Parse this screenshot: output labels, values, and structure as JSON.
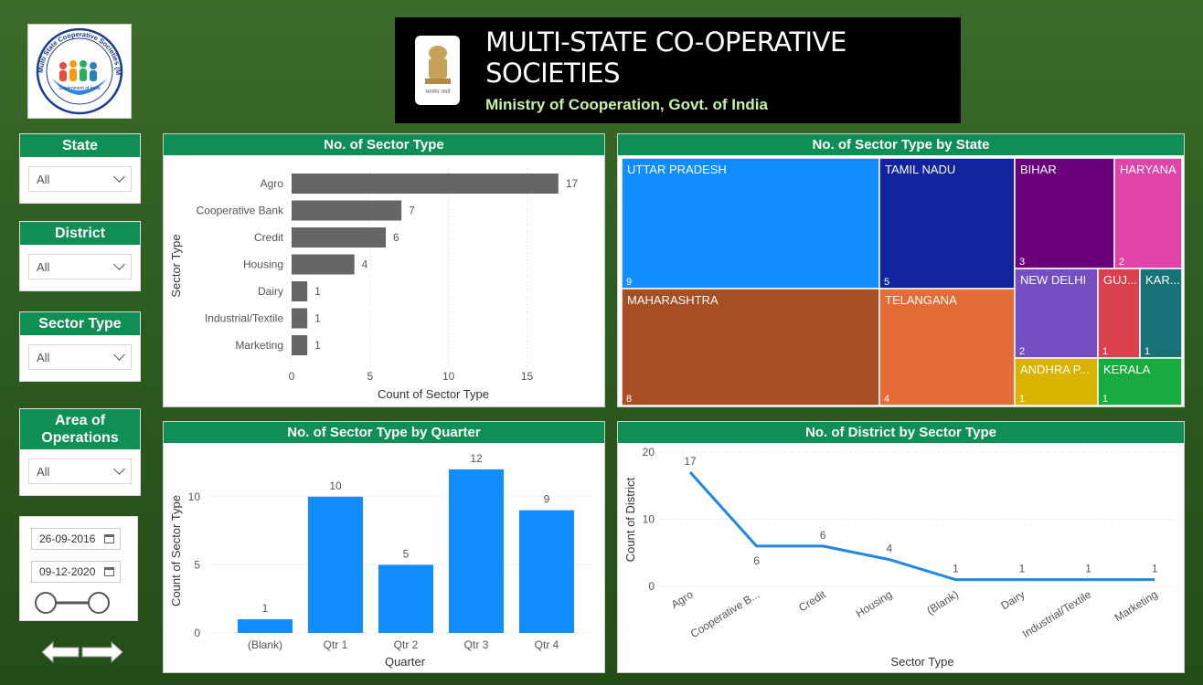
{
  "header": {
    "title": "MULTI-STATE CO-OPERATIVE SOCIETIES",
    "subtitle": "Ministry of Cooperation, Govt. of India",
    "emblem_caption": "सत्यमेव जयते"
  },
  "logo": {
    "ring_text": "Multi State Cooperative Societies (MSCS)",
    "caption": "Government of India"
  },
  "slicers": [
    {
      "label": "State",
      "value": "All"
    },
    {
      "label": "District",
      "value": "All"
    },
    {
      "label": "Sector Type",
      "value": "All"
    },
    {
      "label": "Area of Operations",
      "value": "All"
    }
  ],
  "date_range": {
    "start": "26-09-2016",
    "end": "09-12-2020"
  },
  "colors": {
    "header_green": "#0f8f55",
    "bar_gray": "#666666",
    "bar_blue": "#118dff",
    "line_blue": "#1e88e5"
  },
  "chart_data": [
    {
      "type": "bar",
      "orientation": "horizontal",
      "title": "No. of Sector Type",
      "xlabel": "Count of Sector Type",
      "ylabel": "Sector Type",
      "categories": [
        "Agro",
        "Cooperative Bank",
        "Credit",
        "Housing",
        "Dairy",
        "Industrial/Textile",
        "Marketing"
      ],
      "values": [
        17,
        7,
        6,
        4,
        1,
        1,
        1
      ],
      "xlim": [
        0,
        18
      ],
      "ticks": [
        0,
        5,
        10,
        15
      ]
    },
    {
      "type": "treemap",
      "title": "No. of Sector Type by State",
      "items": [
        {
          "label": "UTTAR PRADESH",
          "value": 9,
          "color": "#118dff"
        },
        {
          "label": "MAHARASHTRA",
          "value": 8,
          "color": "#a84e24"
        },
        {
          "label": "TAMIL NADU",
          "value": 5,
          "color": "#12239e"
        },
        {
          "label": "TELANGANA",
          "value": 4,
          "color": "#e66c37"
        },
        {
          "label": "BIHAR",
          "value": 3,
          "color": "#6b007b"
        },
        {
          "label": "HARYANA",
          "value": 2,
          "color": "#e044a7"
        },
        {
          "label": "NEW DELHI",
          "value": 2,
          "color": "#744ec2"
        },
        {
          "label": "GUJ...",
          "value": 1,
          "color": "#d9414f"
        },
        {
          "label": "KAR...",
          "value": 1,
          "color": "#197278"
        },
        {
          "label": "ANDHRA P...",
          "value": 1,
          "color": "#d9b300"
        },
        {
          "label": "KERALA",
          "value": 1,
          "color": "#1aab40"
        }
      ]
    },
    {
      "type": "bar",
      "title": "No. of Sector Type by Quarter",
      "xlabel": "Quarter",
      "ylabel": "Count of Sector Type",
      "categories": [
        "(Blank)",
        "Qtr 1",
        "Qtr 2",
        "Qtr 3",
        "Qtr 4"
      ],
      "values": [
        1,
        10,
        5,
        12,
        9
      ],
      "ylim": [
        0,
        13
      ],
      "ticks": [
        0,
        5,
        10
      ]
    },
    {
      "type": "line",
      "title": "No. of District by Sector Type",
      "xlabel": "Sector Type",
      "ylabel": "Count of District",
      "categories": [
        "Agro",
        "Cooperative B...",
        "Credit",
        "Housing",
        "(Blank)",
        "Dairy",
        "Industrial/Textile",
        "Marketing"
      ],
      "values": [
        17,
        6,
        6,
        4,
        1,
        1,
        1,
        1
      ],
      "ylim": [
        0,
        20
      ],
      "ticks": [
        0,
        10,
        20
      ]
    }
  ]
}
